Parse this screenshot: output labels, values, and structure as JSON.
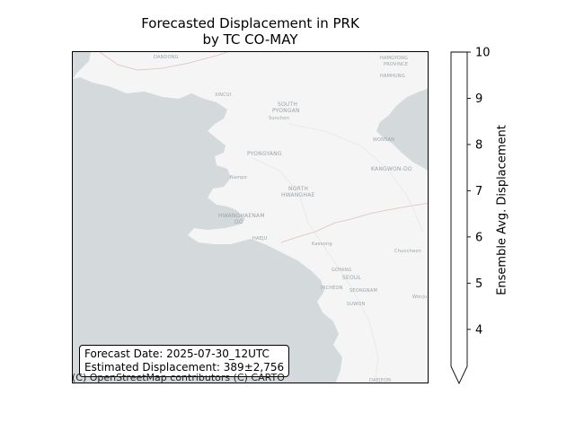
{
  "title_line1": "Forecasted Displacement in PRK",
  "title_line2": "by TC CO-MAY",
  "info": {
    "forecast_date": "Forecast Date: 2025-07-30_12UTC",
    "estimated_displacement": "Estimated Displacement: 389±2,756"
  },
  "attribution": "(C) OpenStreetMap contributors (C) CARTO",
  "colorbar": {
    "label": "Ensemble Avg. Displacement",
    "ticks": [
      "4",
      "5",
      "6",
      "7",
      "8",
      "9",
      "10"
    ],
    "min": 3.2,
    "max": 10,
    "extend": "min",
    "fill": "#ffffff"
  },
  "map_labels": [
    "DANDONG",
    "HAMGYONG",
    "PROVINCE",
    "HAMHUNG",
    "XINCUI",
    "SOUTH",
    "PYONGAN",
    "Sunchon",
    "PYONGYANG",
    "Nampo",
    "NORTH",
    "HWANGHAE",
    "KANGWON-DO",
    "WONSAN",
    "HWANGHAENAM",
    "DO",
    "HAEJU",
    "Kaesong",
    "GOYANG",
    "SEOUL",
    "INCHEON",
    "SEONGNAM",
    "SUWON",
    "Chuncheon",
    "Wonju",
    "DAEJEON"
  ],
  "colors": {
    "sea": "#d4d9dc",
    "land": "#f4f5f4",
    "border": "#e8c9c9"
  }
}
